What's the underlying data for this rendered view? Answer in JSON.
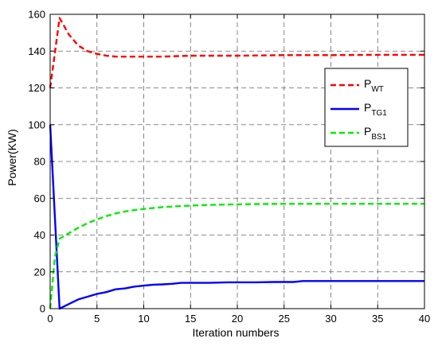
{
  "chart_data": {
    "type": "line",
    "xlabel": "Iteration numbers",
    "ylabel": "Power(KW)",
    "xlim": [
      0,
      40
    ],
    "ylim": [
      0,
      160
    ],
    "xticks": [
      "0",
      "5",
      "10",
      "15",
      "20",
      "25",
      "30",
      "35",
      "40"
    ],
    "yticks": [
      "0",
      "20",
      "40",
      "60",
      "80",
      "100",
      "120",
      "140",
      "160"
    ],
    "grid": true,
    "grid_style": "dashed",
    "legend_position": "right",
    "series": [
      {
        "name": "P",
        "subscript": "WT",
        "color": "#ff0000",
        "dash": "dashed",
        "x": [
          0,
          1,
          2,
          3,
          4,
          5,
          6,
          7,
          8,
          10,
          12,
          15,
          20,
          25,
          30,
          35,
          40
        ],
        "values": [
          120,
          158,
          149,
          143,
          140,
          138.5,
          137.5,
          137,
          137,
          137,
          137,
          137.5,
          137.5,
          137.8,
          137.8,
          138,
          138
        ]
      },
      {
        "name": "P",
        "subscript": "TG1",
        "color": "#0000ff",
        "dash": "solid",
        "x": [
          0,
          1,
          2,
          3,
          4,
          5,
          6,
          7,
          8,
          9,
          10,
          11,
          12,
          13,
          14,
          15,
          17,
          19,
          20,
          22,
          24,
          26,
          27,
          30,
          35,
          40
        ],
        "values": [
          100,
          0,
          2.5,
          5,
          6.5,
          8,
          9,
          10.5,
          11,
          12,
          12.5,
          13,
          13.2,
          13.5,
          14,
          14,
          14,
          14.3,
          14.3,
          14.3,
          14.5,
          14.5,
          15,
          15,
          15,
          15
        ]
      },
      {
        "name": "P",
        "subscript": "BS1",
        "color": "#00ee00",
        "dash": "dashed",
        "x": [
          0,
          0.5,
          1,
          2,
          3,
          4,
          5,
          6,
          7,
          8,
          9,
          10,
          12,
          14,
          16,
          18,
          20,
          23,
          25,
          30,
          35,
          40
        ],
        "values": [
          0,
          28,
          38,
          41,
          44,
          46.5,
          48.5,
          50.3,
          51.8,
          52.8,
          53.6,
          54.2,
          55.2,
          55.8,
          56.2,
          56.5,
          56.7,
          56.9,
          57,
          57,
          57,
          57
        ]
      }
    ]
  }
}
